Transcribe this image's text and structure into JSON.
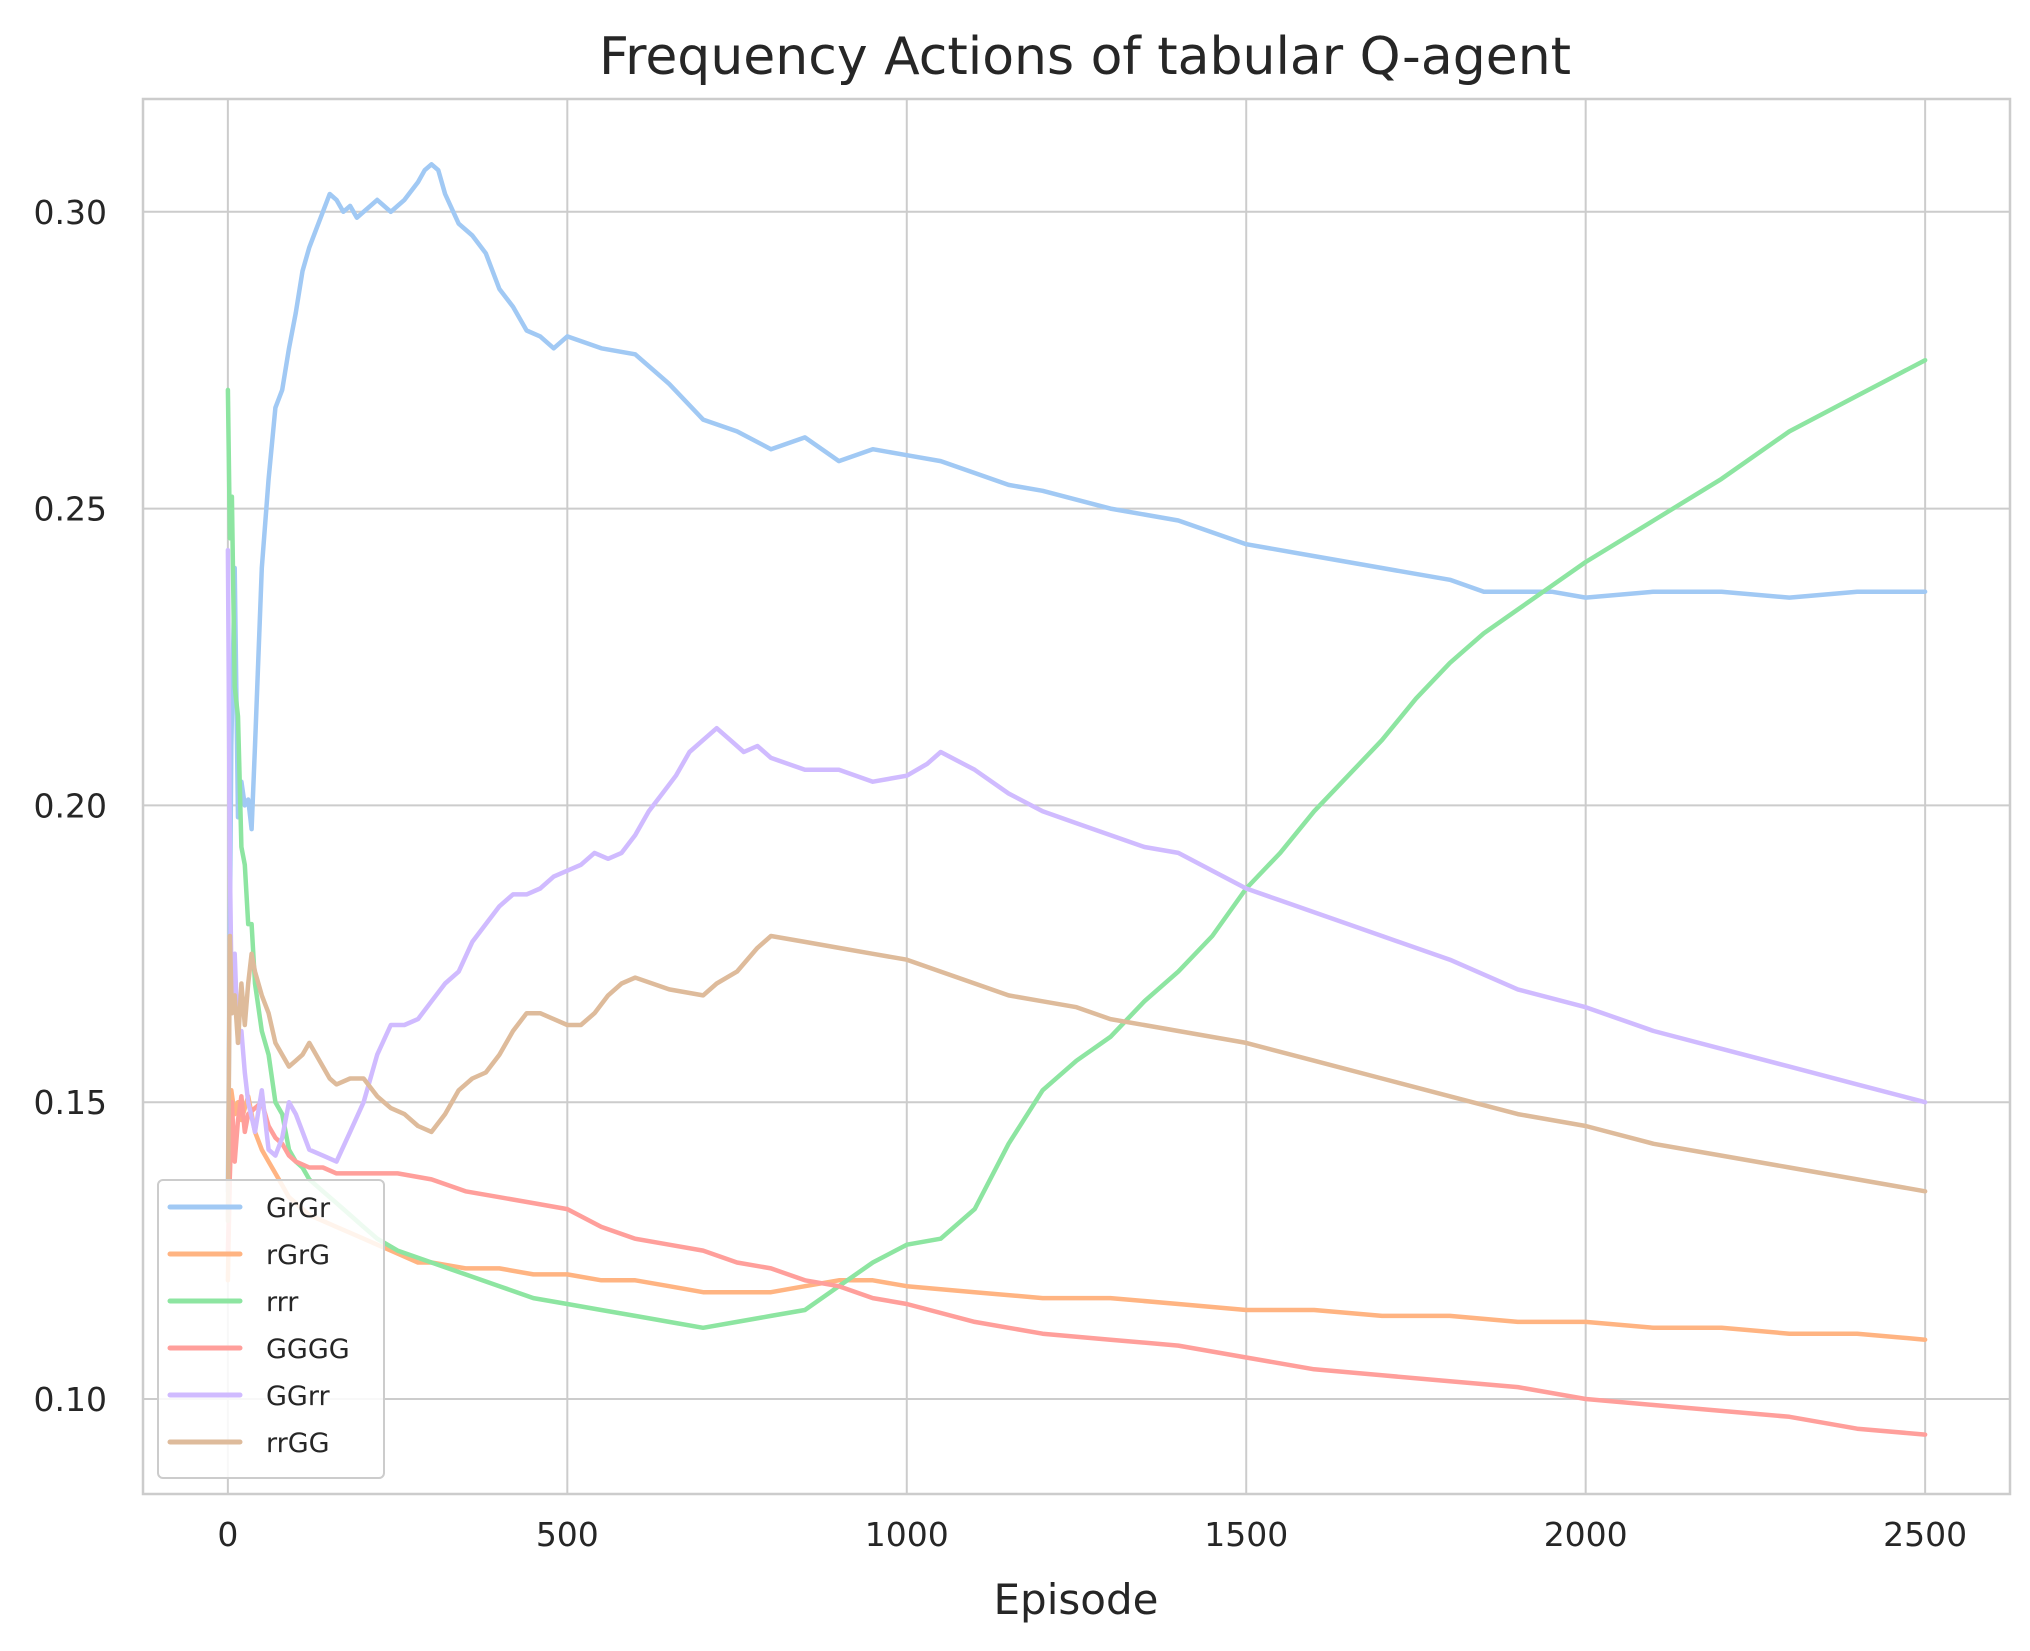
{
  "chart_data": {
    "type": "line",
    "title": "Frequency Actions of tabular Q-agent",
    "xlabel": "Episode",
    "ylabel": "",
    "xlim": [
      -125,
      2625
    ],
    "ylim": [
      0.084,
      0.319
    ],
    "xticks": [
      0,
      500,
      1000,
      1500,
      2000,
      2500
    ],
    "yticks": [
      0.1,
      0.15,
      0.2,
      0.25,
      0.3
    ],
    "grid": true,
    "legend_position": "lower-left",
    "series": [
      {
        "name": "GrGr",
        "color": "#a1c9f4",
        "x": [
          0,
          5,
          10,
          15,
          20,
          25,
          30,
          35,
          40,
          45,
          50,
          60,
          70,
          80,
          90,
          100,
          110,
          120,
          130,
          140,
          150,
          160,
          170,
          180,
          190,
          200,
          220,
          240,
          260,
          280,
          290,
          300,
          310,
          320,
          340,
          360,
          380,
          400,
          420,
          440,
          460,
          480,
          500,
          550,
          600,
          650,
          700,
          750,
          800,
          850,
          900,
          950,
          1000,
          1050,
          1100,
          1150,
          1200,
          1300,
          1400,
          1500,
          1600,
          1700,
          1800,
          1850,
          1900,
          1950,
          2000,
          2100,
          2200,
          2300,
          2400,
          2500
        ],
        "y": [
          0.135,
          0.21,
          0.24,
          0.198,
          0.204,
          0.2,
          0.201,
          0.196,
          0.21,
          0.225,
          0.24,
          0.255,
          0.267,
          0.27,
          0.277,
          0.283,
          0.29,
          0.294,
          0.297,
          0.3,
          0.303,
          0.302,
          0.3,
          0.301,
          0.299,
          0.3,
          0.302,
          0.3,
          0.302,
          0.305,
          0.307,
          0.308,
          0.307,
          0.303,
          0.298,
          0.296,
          0.293,
          0.287,
          0.284,
          0.28,
          0.279,
          0.277,
          0.279,
          0.277,
          0.276,
          0.271,
          0.265,
          0.263,
          0.26,
          0.262,
          0.258,
          0.26,
          0.259,
          0.258,
          0.256,
          0.254,
          0.253,
          0.25,
          0.248,
          0.244,
          0.242,
          0.24,
          0.238,
          0.236,
          0.236,
          0.236,
          0.235,
          0.236,
          0.236,
          0.235,
          0.236,
          0.236
        ]
      },
      {
        "name": "rGrG",
        "color": "#ffb482",
        "x": [
          0,
          5,
          10,
          15,
          20,
          30,
          40,
          50,
          60,
          70,
          80,
          90,
          100,
          120,
          140,
          160,
          180,
          200,
          220,
          240,
          260,
          280,
          300,
          350,
          400,
          450,
          500,
          550,
          600,
          650,
          700,
          750,
          800,
          850,
          900,
          950,
          1000,
          1100,
          1200,
          1300,
          1400,
          1500,
          1600,
          1700,
          1800,
          1900,
          2000,
          2100,
          2200,
          2300,
          2400,
          2500
        ],
        "y": [
          0.12,
          0.152,
          0.148,
          0.15,
          0.147,
          0.151,
          0.145,
          0.142,
          0.14,
          0.138,
          0.136,
          0.134,
          0.133,
          0.131,
          0.13,
          0.129,
          0.128,
          0.127,
          0.126,
          0.125,
          0.124,
          0.123,
          0.123,
          0.122,
          0.122,
          0.121,
          0.121,
          0.12,
          0.12,
          0.119,
          0.118,
          0.118,
          0.118,
          0.119,
          0.12,
          0.12,
          0.119,
          0.118,
          0.117,
          0.117,
          0.116,
          0.115,
          0.115,
          0.114,
          0.114,
          0.113,
          0.113,
          0.112,
          0.112,
          0.111,
          0.111,
          0.11
        ]
      },
      {
        "name": "rrr",
        "color": "#8de5a1",
        "x": [
          0,
          3,
          6,
          10,
          15,
          20,
          25,
          30,
          35,
          40,
          50,
          60,
          70,
          80,
          90,
          100,
          110,
          120,
          130,
          140,
          160,
          180,
          200,
          220,
          250,
          300,
          350,
          400,
          450,
          500,
          550,
          600,
          650,
          700,
          750,
          800,
          850,
          900,
          950,
          1000,
          1050,
          1100,
          1150,
          1200,
          1250,
          1300,
          1350,
          1400,
          1450,
          1500,
          1550,
          1600,
          1650,
          1700,
          1750,
          1800,
          1850,
          1900,
          1950,
          2000,
          2100,
          2200,
          2300,
          2400,
          2500
        ],
        "y": [
          0.27,
          0.245,
          0.252,
          0.22,
          0.215,
          0.193,
          0.19,
          0.18,
          0.18,
          0.17,
          0.162,
          0.158,
          0.15,
          0.148,
          0.142,
          0.14,
          0.139,
          0.137,
          0.136,
          0.135,
          0.133,
          0.131,
          0.129,
          0.127,
          0.125,
          0.123,
          0.121,
          0.119,
          0.117,
          0.116,
          0.115,
          0.114,
          0.113,
          0.112,
          0.113,
          0.114,
          0.115,
          0.119,
          0.123,
          0.126,
          0.127,
          0.132,
          0.143,
          0.152,
          0.157,
          0.161,
          0.167,
          0.172,
          0.178,
          0.186,
          0.192,
          0.199,
          0.205,
          0.211,
          0.218,
          0.224,
          0.229,
          0.233,
          0.237,
          0.241,
          0.248,
          0.255,
          0.263,
          0.269,
          0.275
        ]
      },
      {
        "name": "GGGG",
        "color": "#ff9f9b",
        "x": [
          0,
          3,
          6,
          10,
          15,
          20,
          25,
          30,
          40,
          50,
          60,
          70,
          80,
          90,
          100,
          120,
          140,
          160,
          180,
          200,
          250,
          300,
          350,
          400,
          450,
          500,
          550,
          600,
          650,
          700,
          750,
          800,
          850,
          900,
          950,
          1000,
          1100,
          1200,
          1300,
          1400,
          1500,
          1600,
          1700,
          1800,
          1900,
          2000,
          2100,
          2200,
          2300,
          2400,
          2500
        ],
        "y": [
          0.125,
          0.138,
          0.15,
          0.14,
          0.147,
          0.151,
          0.145,
          0.148,
          0.149,
          0.15,
          0.146,
          0.144,
          0.143,
          0.141,
          0.14,
          0.139,
          0.139,
          0.138,
          0.138,
          0.138,
          0.138,
          0.137,
          0.135,
          0.134,
          0.133,
          0.132,
          0.129,
          0.127,
          0.126,
          0.125,
          0.123,
          0.122,
          0.12,
          0.119,
          0.117,
          0.116,
          0.113,
          0.111,
          0.11,
          0.109,
          0.107,
          0.105,
          0.104,
          0.103,
          0.102,
          0.1,
          0.099,
          0.098,
          0.097,
          0.095,
          0.094
        ]
      },
      {
        "name": "GGrr",
        "color": "#d0bbff",
        "x": [
          0,
          3,
          6,
          10,
          15,
          20,
          25,
          30,
          40,
          50,
          60,
          70,
          80,
          90,
          100,
          120,
          140,
          160,
          180,
          200,
          220,
          240,
          260,
          280,
          300,
          320,
          340,
          360,
          380,
          400,
          420,
          440,
          460,
          480,
          500,
          520,
          540,
          560,
          580,
          600,
          620,
          640,
          660,
          680,
          700,
          720,
          740,
          760,
          780,
          800,
          850,
          900,
          950,
          1000,
          1030,
          1050,
          1100,
          1150,
          1200,
          1250,
          1300,
          1350,
          1400,
          1450,
          1500,
          1550,
          1600,
          1650,
          1700,
          1800,
          1900,
          2000,
          2100,
          2200,
          2300,
          2400,
          2500
        ],
        "y": [
          0.243,
          0.19,
          0.165,
          0.175,
          0.16,
          0.162,
          0.155,
          0.15,
          0.145,
          0.152,
          0.142,
          0.141,
          0.144,
          0.15,
          0.148,
          0.142,
          0.141,
          0.14,
          0.145,
          0.15,
          0.158,
          0.163,
          0.163,
          0.164,
          0.167,
          0.17,
          0.172,
          0.177,
          0.18,
          0.183,
          0.185,
          0.185,
          0.186,
          0.188,
          0.189,
          0.19,
          0.192,
          0.191,
          0.192,
          0.195,
          0.199,
          0.202,
          0.205,
          0.209,
          0.211,
          0.213,
          0.211,
          0.209,
          0.21,
          0.208,
          0.206,
          0.206,
          0.204,
          0.205,
          0.207,
          0.209,
          0.206,
          0.202,
          0.199,
          0.197,
          0.195,
          0.193,
          0.192,
          0.189,
          0.186,
          0.184,
          0.182,
          0.18,
          0.178,
          0.174,
          0.169,
          0.166,
          0.162,
          0.159,
          0.156,
          0.153,
          0.15
        ]
      },
      {
        "name": "rrGG",
        "color": "#debb9b",
        "x": [
          0,
          3,
          6,
          10,
          15,
          20,
          25,
          30,
          35,
          40,
          50,
          60,
          70,
          80,
          90,
          100,
          110,
          120,
          130,
          140,
          150,
          160,
          180,
          200,
          220,
          240,
          260,
          280,
          300,
          320,
          340,
          360,
          380,
          400,
          420,
          440,
          460,
          480,
          500,
          520,
          540,
          560,
          580,
          600,
          650,
          700,
          720,
          750,
          780,
          800,
          850,
          900,
          950,
          1000,
          1050,
          1100,
          1150,
          1200,
          1250,
          1300,
          1400,
          1500,
          1600,
          1700,
          1800,
          1900,
          2000,
          2100,
          2200,
          2300,
          2400,
          2500
        ],
        "y": [
          0.13,
          0.178,
          0.165,
          0.168,
          0.16,
          0.17,
          0.163,
          0.17,
          0.175,
          0.172,
          0.168,
          0.165,
          0.16,
          0.158,
          0.156,
          0.157,
          0.158,
          0.16,
          0.158,
          0.156,
          0.154,
          0.153,
          0.154,
          0.154,
          0.151,
          0.149,
          0.148,
          0.146,
          0.145,
          0.148,
          0.152,
          0.154,
          0.155,
          0.158,
          0.162,
          0.165,
          0.165,
          0.164,
          0.163,
          0.163,
          0.165,
          0.168,
          0.17,
          0.171,
          0.169,
          0.168,
          0.17,
          0.172,
          0.176,
          0.178,
          0.177,
          0.176,
          0.175,
          0.174,
          0.172,
          0.17,
          0.168,
          0.167,
          0.166,
          0.164,
          0.162,
          0.16,
          0.157,
          0.154,
          0.151,
          0.148,
          0.146,
          0.143,
          0.141,
          0.139,
          0.137,
          0.135
        ]
      }
    ]
  }
}
